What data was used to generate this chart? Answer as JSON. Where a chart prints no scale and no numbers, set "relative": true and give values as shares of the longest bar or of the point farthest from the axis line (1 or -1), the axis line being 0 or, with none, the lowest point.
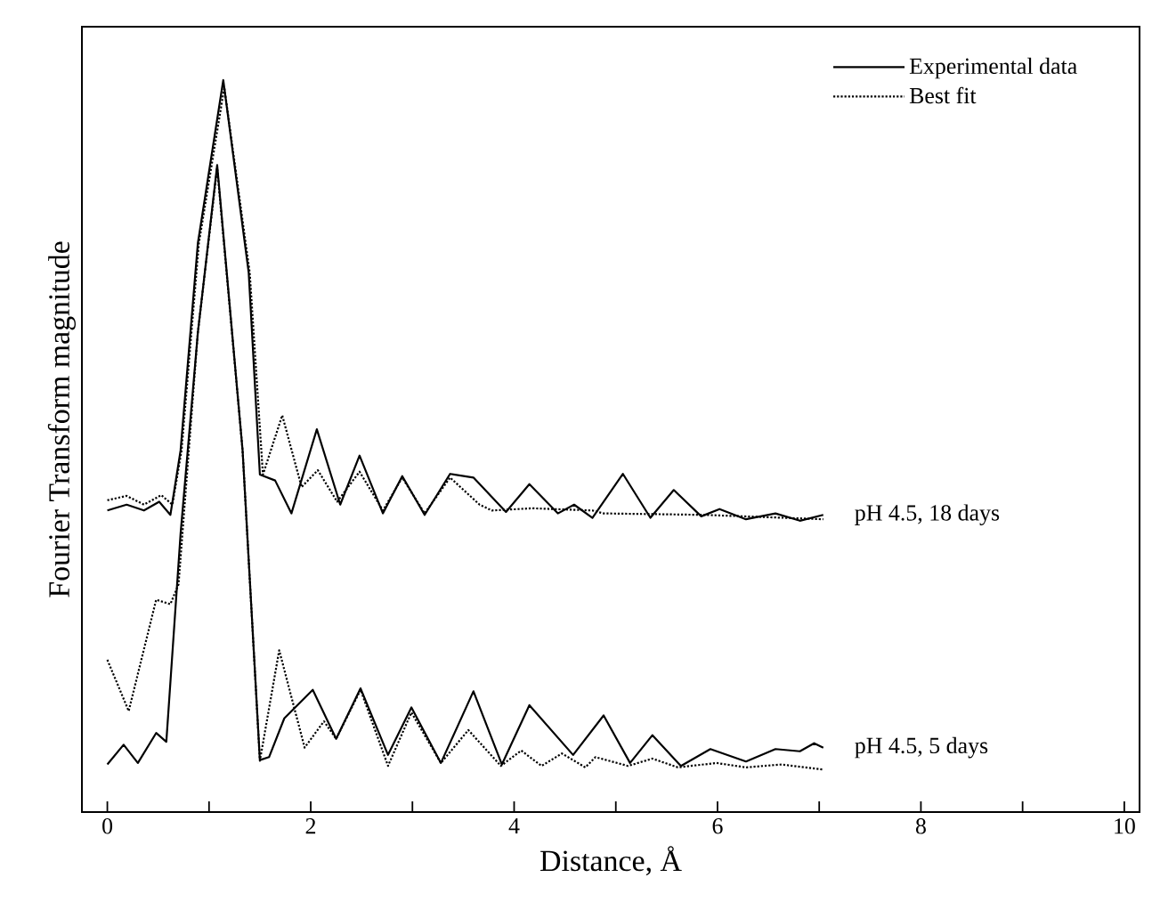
{
  "chart_data": {
    "type": "line",
    "relative": true,
    "xlabel": "Distance, Å",
    "ylabel": "Fourier Transform magnitude",
    "xlim": [
      -0.25,
      10.15
    ],
    "xticks": [
      0,
      {
        "value": 1,
        "label": null
      },
      2,
      {
        "value": 3,
        "label": null
      },
      4,
      {
        "value": 5,
        "label": null
      },
      6,
      {
        "value": 7,
        "label": null
      },
      8,
      {
        "value": 9,
        "label": null
      },
      10
    ],
    "legend": "top right",
    "grid": false,
    "series": [
      {
        "name": "Experimental data",
        "color": "#000000",
        "line_style": "solid",
        "x": [
          0,
          0.19,
          0.36,
          0.51,
          0.62,
          0.72,
          0.89,
          1.14,
          1.39,
          1.5,
          1.65,
          1.81,
          2.06,
          2.29,
          2.48,
          2.71,
          2.9,
          3.12,
          3.37,
          3.6,
          3.92,
          4.15,
          4.43,
          4.59,
          4.77,
          5.07,
          5.34,
          5.57,
          5.84,
          6.02,
          6.28,
          6.57,
          6.81,
          7.04
        ],
        "values": [
          0.412,
          0.42,
          0.412,
          0.424,
          0.406,
          0.494,
          0.777,
          1.0,
          0.737,
          0.461,
          0.453,
          0.408,
          0.523,
          0.42,
          0.487,
          0.408,
          0.459,
          0.406,
          0.462,
          0.457,
          0.41,
          0.448,
          0.408,
          0.42,
          0.402,
          0.462,
          0.402,
          0.44,
          0.404,
          0.414,
          0.4,
          0.408,
          0.398,
          0.406
        ]
      },
      {
        "name": "Best fit",
        "color": "#000000",
        "line_style": "dotted",
        "x": [
          0,
          0.19,
          0.36,
          0.53,
          0.64,
          0.73,
          0.9,
          1.15,
          1.4,
          1.53,
          1.72,
          1.91,
          2.07,
          2.26,
          2.48,
          2.71,
          2.9,
          3.12,
          3.37,
          3.66,
          3.78,
          4.18,
          4.77,
          4.88,
          5.87,
          7.04
        ],
        "values": [
          0.426,
          0.432,
          0.42,
          0.433,
          0.42,
          0.494,
          0.777,
          0.99,
          0.737,
          0.461,
          0.542,
          0.444,
          0.467,
          0.424,
          0.465,
          0.412,
          0.457,
          0.408,
          0.457,
          0.42,
          0.412,
          0.415,
          0.412,
          0.408,
          0.406,
          0.4
        ]
      },
      {
        "color": "#000000",
        "line_style": "solid",
        "x": [
          0,
          0.16,
          0.3,
          0.48,
          0.58,
          0.72,
          0.89,
          1.08,
          1.33,
          1.5,
          1.59,
          1.74,
          2.02,
          2.25,
          2.49,
          2.76,
          2.99,
          3.28,
          3.6,
          3.88,
          4.15,
          4.58,
          4.88,
          5.14,
          5.36,
          5.64,
          5.93,
          6.28,
          6.57,
          6.81,
          6.95,
          7.04
        ],
        "values": [
          0.065,
          0.092,
          0.067,
          0.108,
          0.096,
          0.38,
          0.655,
          0.884,
          0.494,
          0.071,
          0.075,
          0.128,
          0.167,
          0.1,
          0.169,
          0.078,
          0.143,
          0.067,
          0.165,
          0.065,
          0.146,
          0.078,
          0.132,
          0.067,
          0.105,
          0.063,
          0.086,
          0.069,
          0.086,
          0.083,
          0.094,
          0.088
        ]
      },
      {
        "color": "#000000",
        "line_style": "dotted",
        "x": [
          0,
          0.21,
          0.48,
          0.62,
          0.7,
          0.89,
          1.08,
          1.33,
          1.5,
          1.69,
          1.94,
          2.13,
          2.25,
          2.49,
          2.76,
          2.99,
          3.28,
          3.55,
          3.87,
          4.07,
          4.27,
          4.47,
          4.7,
          4.8,
          5.12,
          5.36,
          5.61,
          5.99,
          6.28,
          6.63,
          7.04
        ],
        "values": [
          0.208,
          0.138,
          0.29,
          0.284,
          0.311,
          0.655,
          0.88,
          0.494,
          0.07,
          0.221,
          0.088,
          0.124,
          0.1,
          0.167,
          0.063,
          0.136,
          0.067,
          0.112,
          0.063,
          0.084,
          0.063,
          0.08,
          0.061,
          0.075,
          0.063,
          0.073,
          0.061,
          0.067,
          0.061,
          0.065,
          0.058
        ]
      }
    ],
    "annotations": [
      {
        "text": "pH 4.5, 18 days",
        "x": 7.04,
        "y": 0.406
      },
      {
        "text": "pH 4.5, 5 days",
        "x": 7.04,
        "y": 0.088
      }
    ]
  }
}
